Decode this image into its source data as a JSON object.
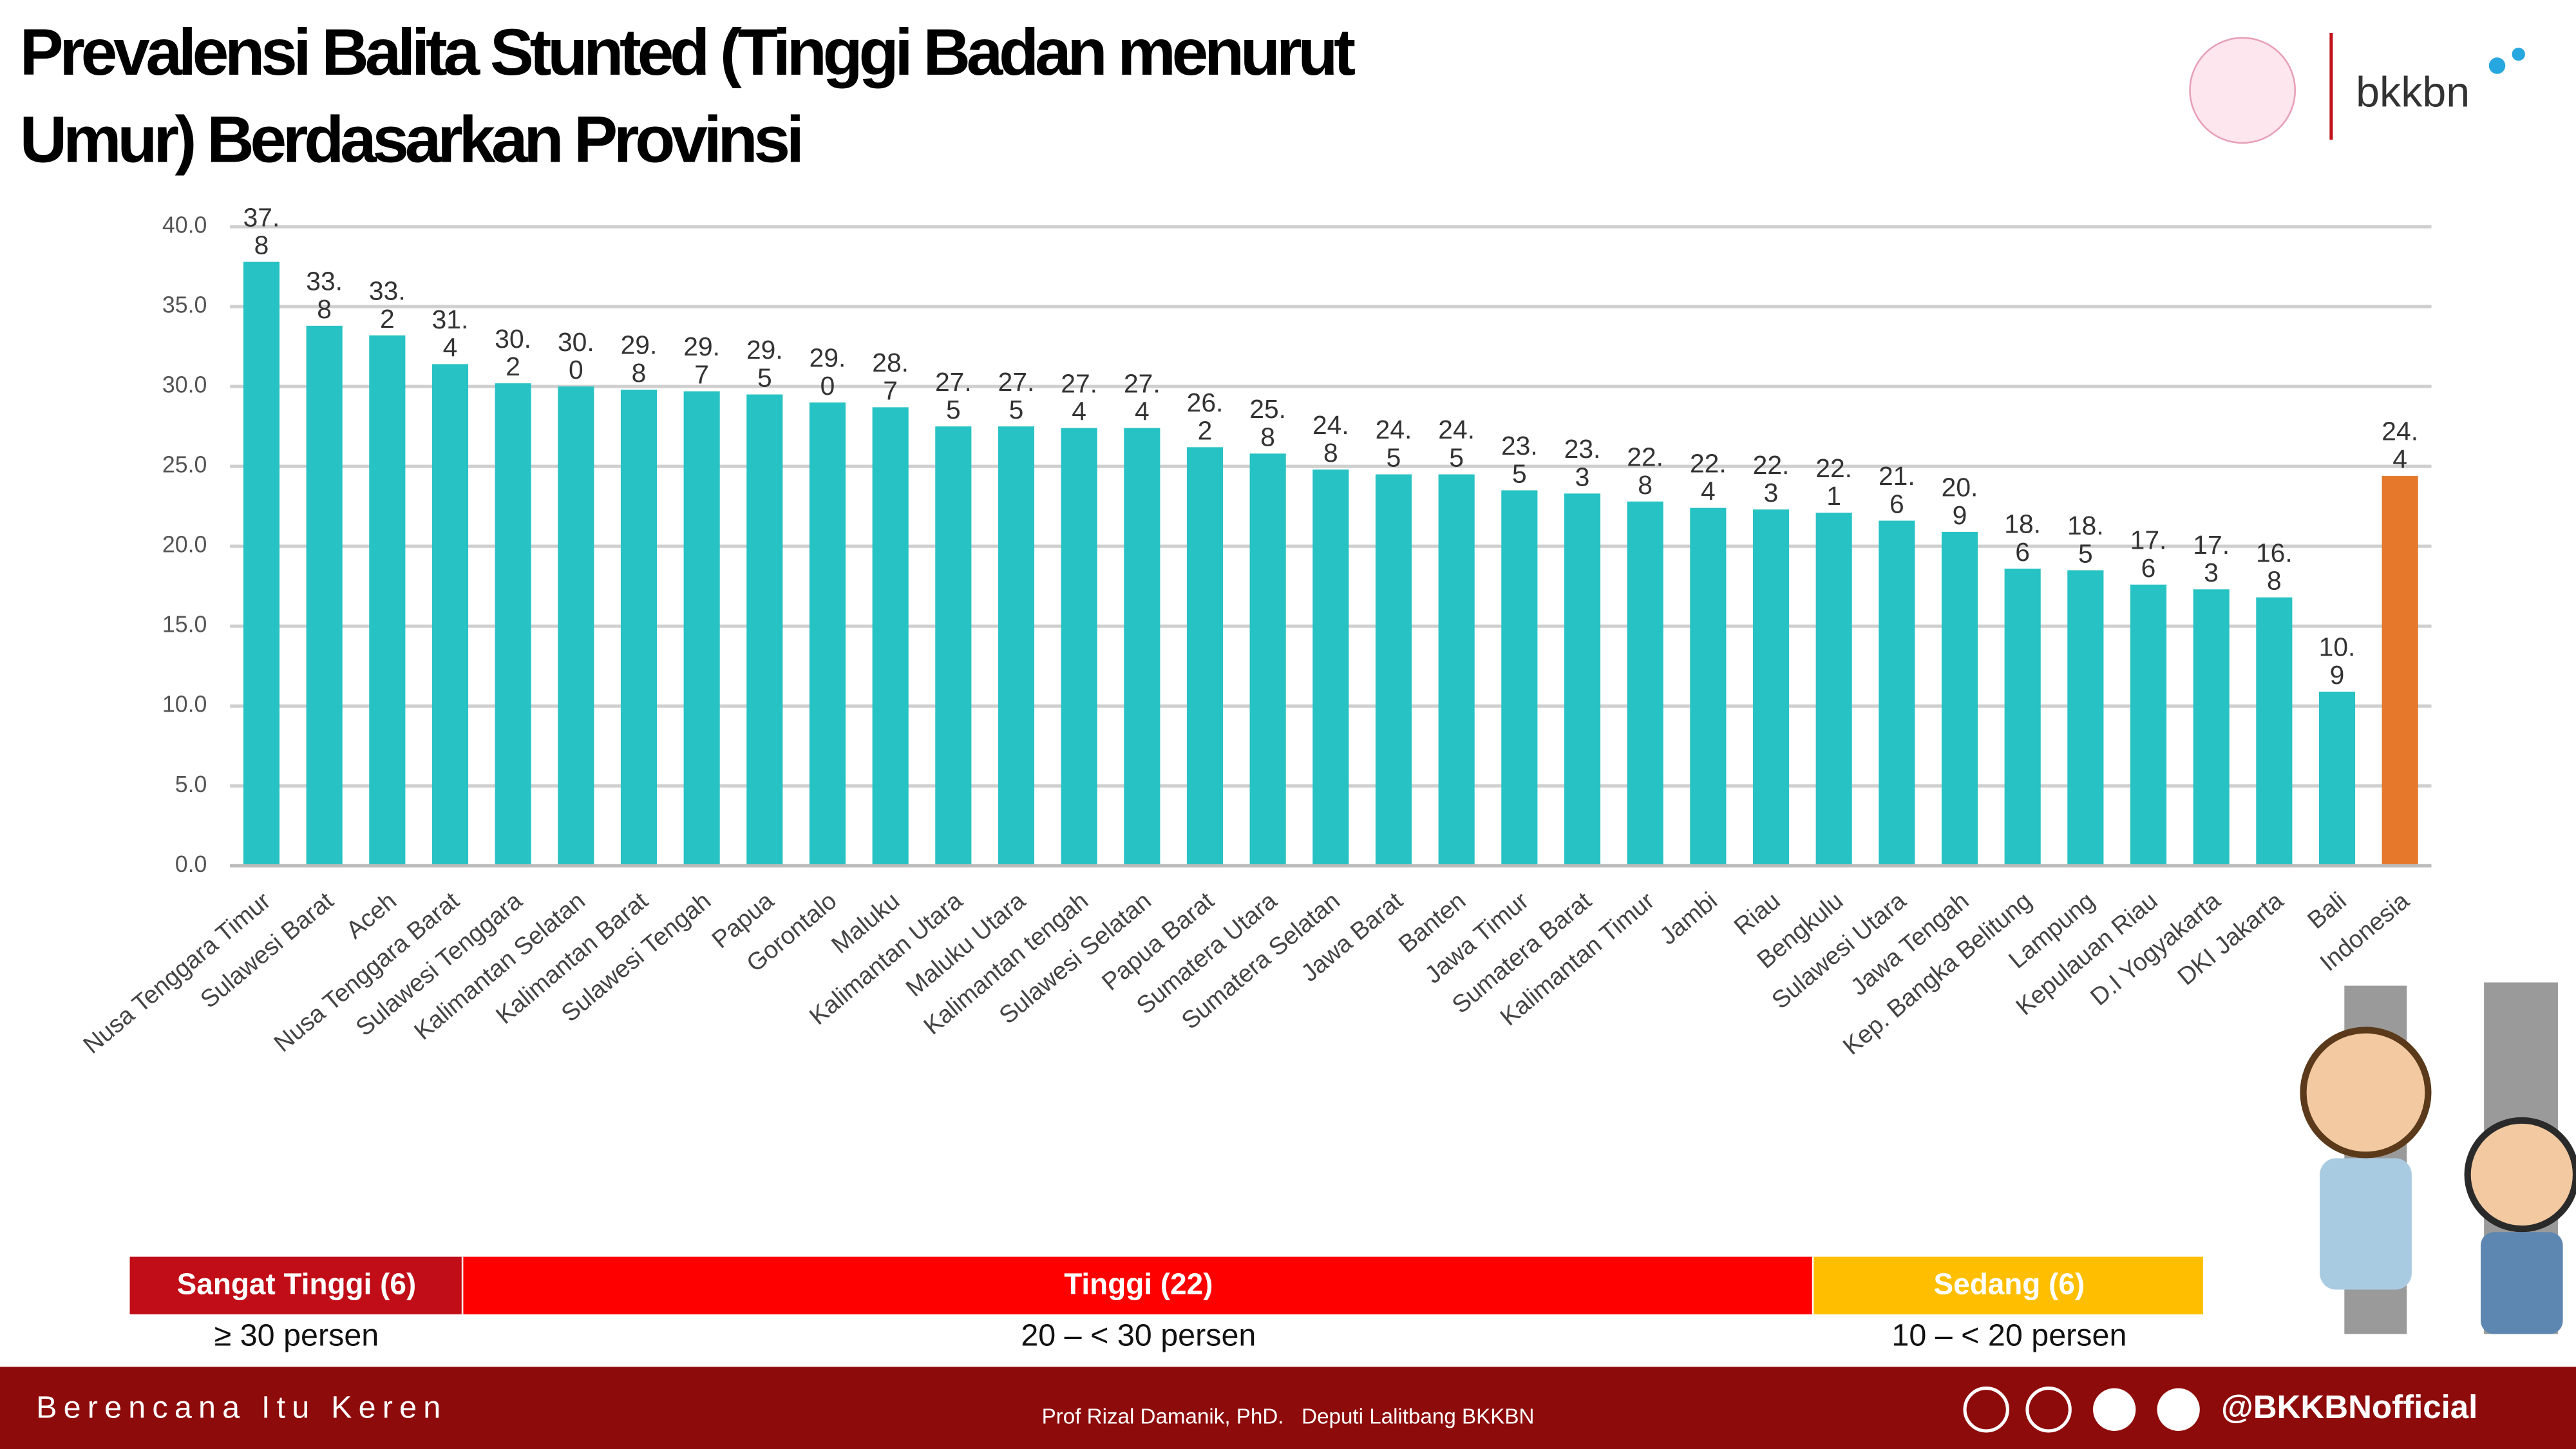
{
  "header": {
    "title_lines": [
      "Prevalensi Balita Stunted (Tinggi Badan menurut",
      "Umur)  Berdasarkan Provinsi"
    ],
    "logo": "bkkbn"
  },
  "chart_data": {
    "type": "bar",
    "categories": [
      "Nusa Tenggara Timur",
      "Sulawesi Barat",
      "Aceh",
      "Nusa Tenggara Barat",
      "Sulawesi Tenggara",
      "Kalimantan  Selatan",
      "Kalimantan Barat",
      "Sulawesi Tengah",
      "Papua",
      "Gorontalo",
      "Maluku",
      "Kalimantan Utara",
      "Maluku Utara",
      "Kalimantan tengah",
      "Sulawesi Selatan",
      "Papua Barat",
      "Sumatera Utara",
      "Sumatera Selatan",
      "Jawa Barat",
      "Banten",
      "Jawa Timur",
      "Sumatera Barat",
      "Kalimantan Timur",
      "Jambi",
      "Riau",
      "Bengkulu",
      "Sulawesi Utara",
      "Jawa Tengah",
      "Kep. Bangka Belitung",
      "Lampung",
      "Kepulauan Riau",
      "D.I Yogyakarta",
      "DKI Jakarta",
      "Bali",
      "Indonesia"
    ],
    "values": [
      37.8,
      33.8,
      33.2,
      31.4,
      30.2,
      30.0,
      29.8,
      29.7,
      29.5,
      29.0,
      28.7,
      27.5,
      27.5,
      27.4,
      27.4,
      26.2,
      25.8,
      24.8,
      24.5,
      24.5,
      23.5,
      23.3,
      22.8,
      22.4,
      22.3,
      22.1,
      21.6,
      20.9,
      18.6,
      18.5,
      17.6,
      17.3,
      16.8,
      10.9,
      24.4
    ],
    "value_labels": [
      "37.8",
      "33.8",
      "33.2",
      "31.4",
      "30.2",
      "30.0",
      "29.8",
      "29.7",
      "29.5",
      "29.0",
      "28.7",
      "27.5",
      "27.5",
      "27.4",
      "27.4",
      "26.2",
      "25.8",
      "24.8",
      "24.5",
      "24.5",
      "23.5",
      "23.3",
      "22.8",
      "22.4",
      "22.3",
      "22.1",
      "21.6",
      "20.9",
      "18.6",
      "18.5",
      "17.6",
      "17.3",
      "16.8",
      "10.9",
      "24.4"
    ],
    "color": "#27c2c4",
    "highlight_color": "#e5782a",
    "highlight_index": 34,
    "ylim": [
      0,
      40
    ],
    "yticks": [
      {
        "value": 0,
        "label": "0.0"
      },
      {
        "value": 5,
        "label": "5.0"
      },
      {
        "value": 10,
        "label": "10.0"
      },
      {
        "value": 15,
        "label": "15.0"
      },
      {
        "value": 20,
        "label": "20.0"
      },
      {
        "value": 25,
        "label": "25.0"
      },
      {
        "value": 30,
        "label": "30.0"
      },
      {
        "value": 35,
        "label": "35.0"
      },
      {
        "value": 40,
        "label": "40.0"
      }
    ],
    "grid": true
  },
  "legend_bands": [
    {
      "label": "Sangat Tinggi (6)",
      "range": "≥ 30 persen",
      "color": "#c00d17"
    },
    {
      "label": "Tinggi (22)",
      "range": "20 – < 30 persen",
      "color": "#fe0000"
    },
    {
      "label": "Sedang (6)",
      "range": "10 – < 20 persen",
      "color": "#ffbf00"
    }
  ],
  "footer": {
    "slogan": "Berencana Itu Keren",
    "credit": "Prof Rizal Damanik, PhD.   Deputi Lalitbang BKKBN",
    "handle": "@BKKBNofficial"
  }
}
